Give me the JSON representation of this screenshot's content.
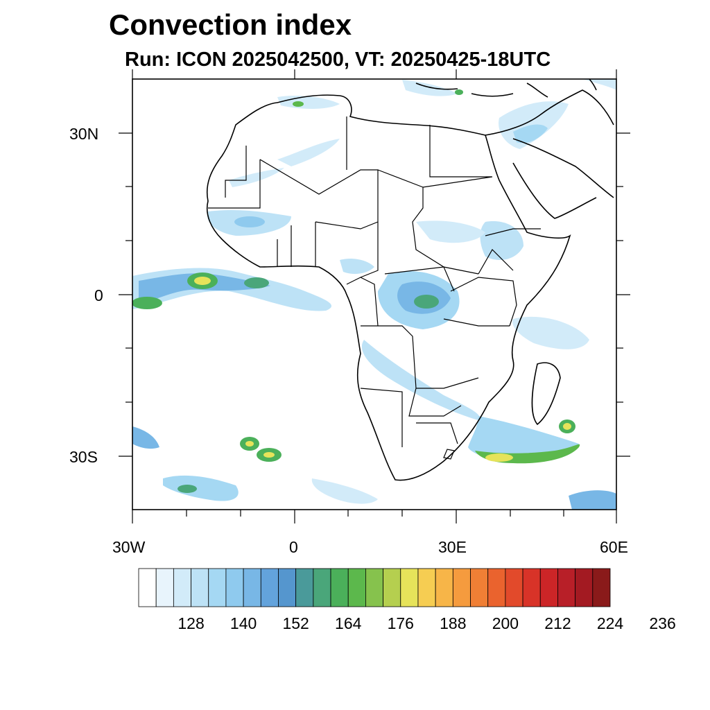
{
  "title": "Convection index",
  "subtitle": "Run: ICON 2025042500,  VT: 20250425-18UTC",
  "axes": {
    "x_ticks": [
      "30W",
      "0",
      "30E",
      "60E"
    ],
    "y_ticks": [
      "30N",
      "0",
      "30S"
    ]
  },
  "colorbar": {
    "labels": [
      "128",
      "140",
      "152",
      "164",
      "176",
      "188",
      "200",
      "212",
      "224",
      "236"
    ],
    "colors": [
      "#ffffff",
      "#e8f4fc",
      "#d2ebf9",
      "#bde2f6",
      "#a5d8f3",
      "#8fcaee",
      "#78b7e6",
      "#63a3dc",
      "#5596ce",
      "#4a9a9a",
      "#4aa67a",
      "#4bb05a",
      "#5cb84c",
      "#86c24d",
      "#b5cf4f",
      "#e6e35a",
      "#f6cd52",
      "#f7b548",
      "#f59b3e",
      "#f07f35",
      "#ea632e",
      "#e24a2b",
      "#d83328",
      "#cc2527",
      "#b81f28",
      "#a31a22",
      "#8a1a1a"
    ]
  }
}
